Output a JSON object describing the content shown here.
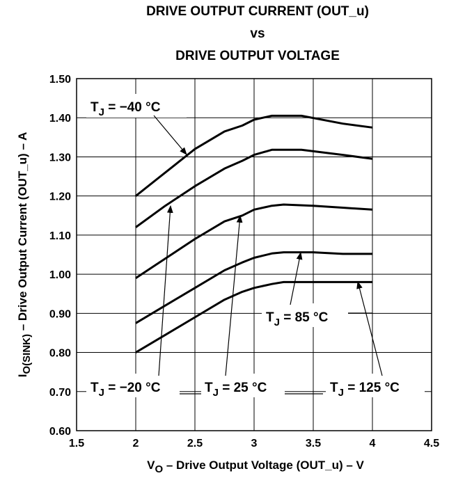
{
  "chart_data": {
    "type": "line",
    "title_lines": [
      "DRIVE OUTPUT CURRENT (OUT_u)",
      "vs",
      "DRIVE OUTPUT VOLTAGE"
    ],
    "xlabel": {
      "prefix": "V",
      "sub": "O",
      "rest": " – Drive Output Voltage (OUT_u) – V"
    },
    "ylabel": {
      "prefix": "I",
      "sub": "O(SINK)",
      "rest": " – Drive Output Current (OUT_u) – A"
    },
    "xlim": [
      1.5,
      4.5
    ],
    "ylim": [
      0.6,
      1.5
    ],
    "x_ticks": [
      "1.5",
      "2",
      "2.5",
      "3",
      "3.5",
      "4",
      "4.5"
    ],
    "x_tick_values": [
      1.5,
      2,
      2.5,
      3,
      3.5,
      4,
      4.5
    ],
    "y_ticks": [
      "0.60",
      "0.70",
      "0.80",
      "0.90",
      "1.00",
      "1.10",
      "1.20",
      "1.30",
      "1.40",
      "1.50"
    ],
    "y_tick_values": [
      0.6,
      0.7,
      0.8,
      0.9,
      1.0,
      1.1,
      1.2,
      1.3,
      1.4,
      1.5
    ],
    "grid": true,
    "series": [
      {
        "name": "TJ = −40 °C",
        "x": [
          2.0,
          2.25,
          2.5,
          2.75,
          2.9,
          3.0,
          3.15,
          3.4,
          3.75,
          4.0
        ],
        "y": [
          1.2,
          1.26,
          1.32,
          1.365,
          1.38,
          1.395,
          1.405,
          1.405,
          1.385,
          1.375
        ]
      },
      {
        "name": "TJ = −20 °C",
        "x": [
          2.0,
          2.25,
          2.5,
          2.75,
          2.9,
          3.0,
          3.15,
          3.4,
          3.75,
          4.0
        ],
        "y": [
          1.12,
          1.175,
          1.225,
          1.27,
          1.29,
          1.305,
          1.318,
          1.318,
          1.305,
          1.295
        ]
      },
      {
        "name": "TJ = 25 °C",
        "x": [
          2.0,
          2.25,
          2.5,
          2.75,
          2.9,
          3.0,
          3.15,
          3.25,
          3.5,
          3.75,
          4.0
        ],
        "y": [
          0.99,
          1.04,
          1.09,
          1.135,
          1.15,
          1.165,
          1.175,
          1.178,
          1.175,
          1.17,
          1.165
        ]
      },
      {
        "name": "TJ = 85 °C",
        "x": [
          2.0,
          2.25,
          2.5,
          2.75,
          2.9,
          3.0,
          3.15,
          3.25,
          3.5,
          3.75,
          4.0
        ],
        "y": [
          0.875,
          0.92,
          0.965,
          1.01,
          1.03,
          1.042,
          1.053,
          1.056,
          1.056,
          1.052,
          1.052
        ]
      },
      {
        "name": "TJ = 125 °C",
        "x": [
          2.0,
          2.25,
          2.5,
          2.75,
          2.9,
          3.0,
          3.15,
          3.25,
          3.5,
          3.75,
          4.0
        ],
        "y": [
          0.8,
          0.845,
          0.89,
          0.935,
          0.955,
          0.965,
          0.975,
          0.98,
          0.98,
          0.98,
          0.98
        ]
      }
    ],
    "annotations": [
      {
        "key": "t40",
        "main": "T",
        "sub": "J",
        "rest": " = −40 °C"
      },
      {
        "key": "t20",
        "main": "T",
        "sub": "J",
        "rest": " = −20 °C"
      },
      {
        "key": "t25",
        "main": "T",
        "sub": "J",
        "rest": " = 25 °C"
      },
      {
        "key": "t85",
        "main": "T",
        "sub": "J",
        "rest": " = 85 °C"
      },
      {
        "key": "t125",
        "main": "T",
        "sub": "J",
        "rest": " = 125 °C"
      }
    ]
  }
}
